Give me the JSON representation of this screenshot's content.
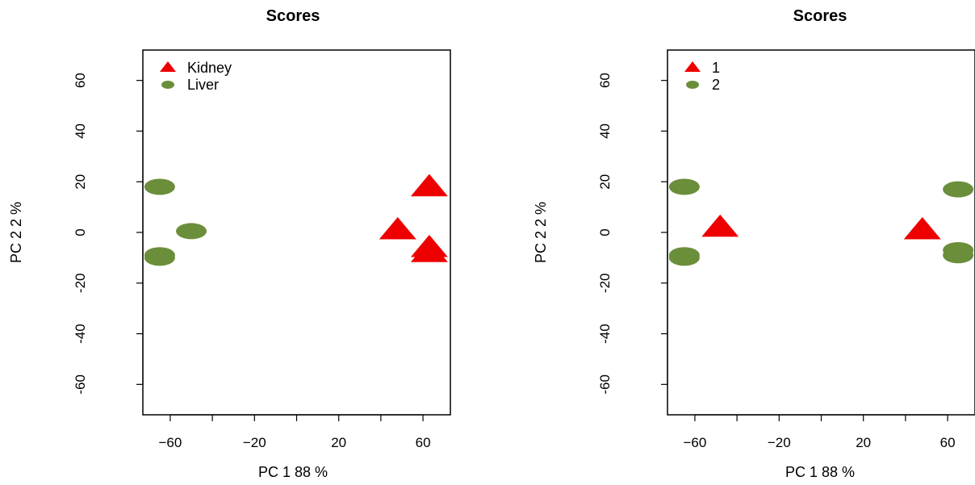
{
  "colors": {
    "red": "#ee0000",
    "green": "#6b8e3a",
    "axis": "#000000",
    "background": "#ffffff"
  },
  "chart_data": [
    {
      "type": "scatter",
      "title": "Scores",
      "xlabel": "PC 1 88 %",
      "ylabel": "PC 2 2 %",
      "xlim": [
        -73,
        73
      ],
      "ylim": [
        -72,
        72
      ],
      "xticks": [
        -60,
        -40,
        -20,
        0,
        20,
        40,
        60
      ],
      "xtick_labels": [
        "−60",
        "",
        "−20",
        "",
        "20",
        "",
        "60"
      ],
      "yticks": [
        -60,
        -40,
        -20,
        0,
        20,
        40,
        60
      ],
      "ytick_labels": [
        "−60",
        "−40",
        "−20",
        "0",
        "20",
        "40",
        "60"
      ],
      "legend_position": "top-left",
      "series": [
        {
          "name": "Kidney",
          "marker": "triangle",
          "color": "#ee0000",
          "points": [
            [
              63,
              17
            ],
            [
              48,
              0
            ],
            [
              63,
              -7
            ],
            [
              63,
              -9
            ]
          ]
        },
        {
          "name": "Liver",
          "marker": "ellipse",
          "color": "#6b8e3a",
          "points": [
            [
              -65,
              18
            ],
            [
              -50,
              0.5
            ],
            [
              -65,
              -9
            ],
            [
              -65,
              -10
            ]
          ]
        }
      ]
    },
    {
      "type": "scatter",
      "title": "Scores",
      "xlabel": "PC 1 88 %",
      "ylabel": "PC 2 2 %",
      "xlim": [
        -73,
        73
      ],
      "ylim": [
        -72,
        72
      ],
      "xticks": [
        -60,
        -40,
        -20,
        0,
        20,
        40,
        60
      ],
      "xtick_labels": [
        "−60",
        "",
        "−20",
        "",
        "20",
        "",
        "60"
      ],
      "yticks": [
        -60,
        -40,
        -20,
        0,
        20,
        40,
        60
      ],
      "ytick_labels": [
        "−60",
        "−40",
        "−20",
        "0",
        "20",
        "40",
        "60"
      ],
      "legend_position": "top-left",
      "series": [
        {
          "name": "1",
          "marker": "triangle",
          "color": "#ee0000",
          "points": [
            [
              -48,
              1
            ],
            [
              48,
              0
            ]
          ]
        },
        {
          "name": "2",
          "marker": "ellipse",
          "color": "#6b8e3a",
          "points": [
            [
              -65,
              18
            ],
            [
              -65,
              -9
            ],
            [
              -65,
              -10
            ],
            [
              65,
              17
            ],
            [
              65,
              -7
            ],
            [
              65,
              -9
            ]
          ]
        }
      ]
    }
  ]
}
